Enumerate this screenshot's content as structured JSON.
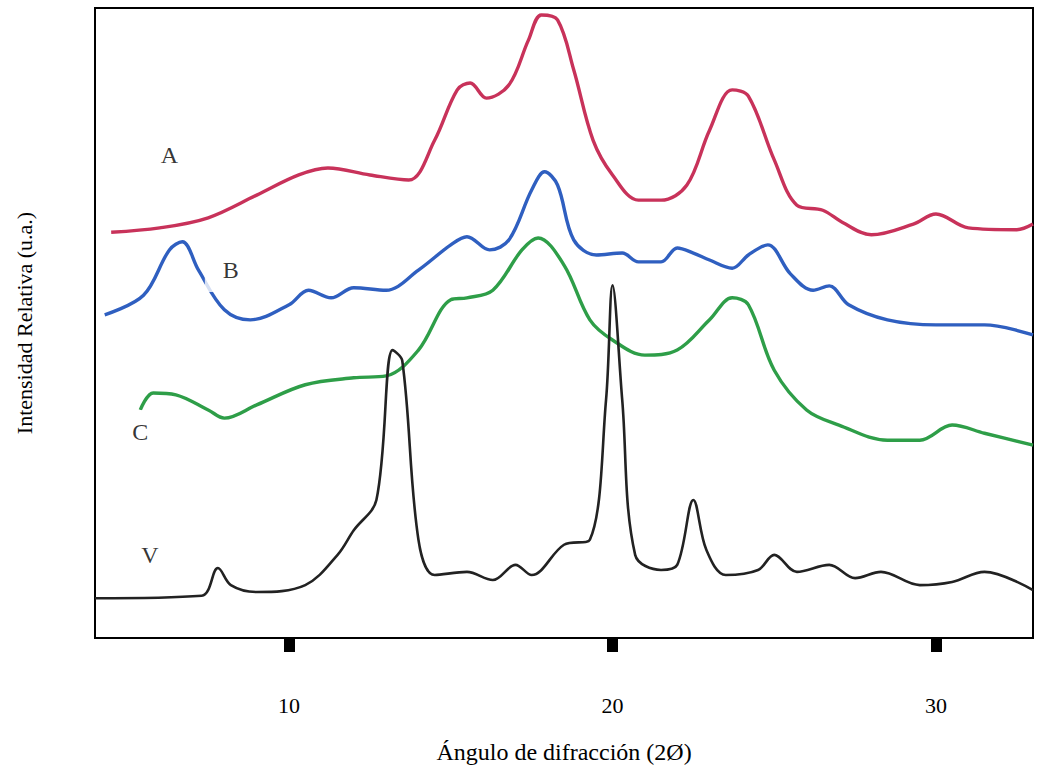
{
  "chart_data": {
    "type": "line",
    "x_label": "Ángulo de difracción (2Ø)",
    "y_label": "Intensidad Relativa (u.a.)",
    "xlim": [
      4,
      33
    ],
    "xticks": [
      10,
      20,
      30
    ],
    "ylim": [
      0,
      100
    ],
    "tick_labels": "x",
    "grid": false,
    "series": [
      {
        "name": "A",
        "color": "#c8325a",
        "x": [
          4.5,
          6,
          7.5,
          9,
          10.3,
          11.2,
          12.5,
          13.7,
          14.5,
          15.2,
          15.6,
          16.1,
          16.8,
          17.4,
          17.8,
          18.3,
          18.8,
          19.4,
          20,
          20.8,
          21.5,
          22.3,
          23,
          23.7,
          24.2,
          25,
          25.7,
          26.5,
          27.1,
          28,
          29.3,
          30,
          31,
          32.5,
          33
        ],
        "values": [
          64.4,
          65.1,
          66.7,
          70.3,
          73.5,
          74.6,
          73.5,
          72.7,
          79,
          87,
          88.1,
          85.7,
          87.8,
          94.9,
          98.9,
          98.1,
          90.2,
          79,
          73.5,
          69.5,
          69.5,
          71.9,
          80.6,
          87,
          86,
          75.9,
          68.7,
          67.9,
          66,
          64,
          65.7,
          67.3,
          65.1,
          64.8,
          65.7
        ]
      },
      {
        "name": "B",
        "color": "#2f5fc0",
        "x": [
          4.3,
          5.5,
          6.3,
          6.7,
          7.2,
          8,
          8.8,
          10,
          10.6,
          11.3,
          12,
          13,
          14,
          15,
          15.5,
          16.2,
          16.8,
          17.5,
          17.9,
          18.3,
          18.8,
          19.5,
          20.3,
          20.8,
          21.5,
          22,
          22.5,
          23,
          23.7,
          24.2,
          24.8,
          25.5,
          26.2,
          26.7,
          27.3,
          28.5,
          30,
          31.5,
          33
        ],
        "values": [
          51.3,
          54.4,
          61.6,
          62.9,
          58.4,
          52.1,
          50.5,
          52.9,
          55.2,
          54,
          55.6,
          55.2,
          58.4,
          62.4,
          63.7,
          61.6,
          63.2,
          71.1,
          74,
          71.9,
          63.2,
          60.8,
          61.1,
          59.7,
          59.7,
          61.9,
          61.1,
          60,
          58.7,
          60.8,
          62.4,
          57.8,
          55.2,
          55.9,
          52.9,
          50.5,
          49.7,
          49.7,
          48.1
        ]
      },
      {
        "name": "C",
        "color": "#2e9e48",
        "x": [
          5.4,
          5.8,
          6.5,
          7.5,
          8,
          9,
          10.5,
          12,
          13,
          14,
          15,
          15.5,
          16.3,
          17.2,
          17.7,
          18.5,
          19.3,
          20,
          21,
          22,
          23,
          23.7,
          24.2,
          25,
          26,
          27,
          28.5,
          29.5,
          30.5,
          31.5,
          33
        ],
        "values": [
          36.2,
          38.9,
          38.6,
          36.2,
          34.9,
          37,
          40.2,
          41.3,
          41.6,
          45.7,
          53.7,
          54,
          55.2,
          61.6,
          63.5,
          59.2,
          50.5,
          47.3,
          44.9,
          45.7,
          50.5,
          54,
          52.9,
          42.5,
          36.2,
          33.8,
          31.4,
          31.4,
          33.8,
          32.5,
          30.6
        ]
      },
      {
        "name": "V",
        "color": "#222222",
        "x": [
          4,
          7.3,
          7.8,
          8.2,
          9,
          10.5,
          11.5,
          12,
          12.7,
          13.2,
          13.5,
          14,
          14.5,
          15.5,
          16.3,
          17,
          17.5,
          18.5,
          19.3,
          19.8,
          20,
          20.3,
          20.7,
          21.5,
          22,
          22.5,
          22.9,
          23.5,
          24.5,
          25,
          25.7,
          26.7,
          27.5,
          28.3,
          29.5,
          30.5,
          31.5,
          33
        ],
        "values": [
          6.3,
          6.7,
          11.1,
          8.4,
          7.3,
          8.4,
          13.2,
          17.1,
          21.9,
          45.7,
          44,
          15.6,
          10,
          10.5,
          9.2,
          11.6,
          10,
          14.8,
          15.6,
          37.8,
          56,
          37.8,
          13.2,
          10.8,
          11.6,
          21.9,
          14,
          10,
          10.8,
          13.2,
          10.5,
          11.6,
          9.5,
          10.5,
          8.4,
          8.9,
          10.5,
          7.6
        ]
      }
    ],
    "annotations": [
      {
        "text": "A",
        "x": 6.3,
        "y": 76.7
      },
      {
        "text": "B",
        "x": 8.2,
        "y": 58.4
      },
      {
        "text": "C",
        "x": 5.4,
        "y": 32.7
      },
      {
        "text": "V",
        "x": 5.7,
        "y": 13.2
      }
    ]
  }
}
